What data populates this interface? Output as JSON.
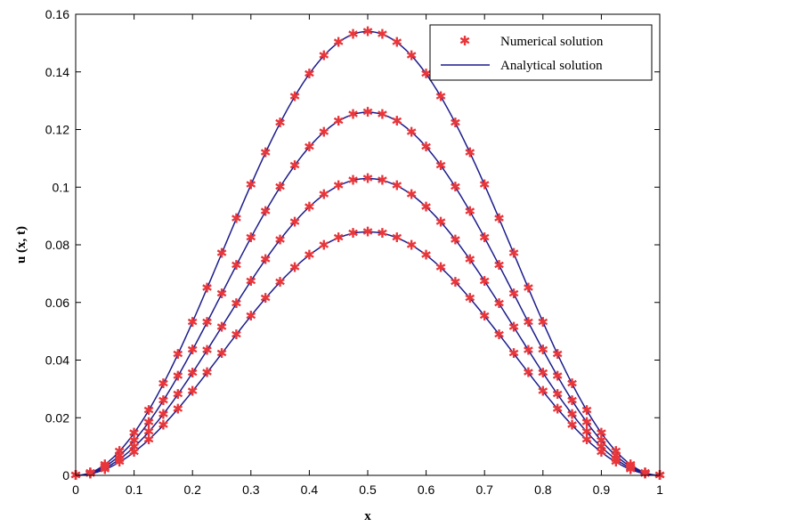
{
  "chart_data": {
    "type": "line",
    "title": "",
    "xlabel": "x",
    "ylabel": "u (x, t)",
    "xlim": [
      0,
      1
    ],
    "ylim": [
      0,
      0.16
    ],
    "x_ticks": [
      "0",
      "0.1",
      "0.2",
      "0.3",
      "0.4",
      "0.5",
      "0.6",
      "0.7",
      "0.8",
      "0.9",
      "1"
    ],
    "y_ticks": [
      "0",
      "0.02",
      "0.04",
      "0.06",
      "0.08",
      "0.1",
      "0.12",
      "0.14",
      "0.16"
    ],
    "x_tick_values": [
      0,
      0.1,
      0.2,
      0.3,
      0.4,
      0.5,
      0.6,
      0.7,
      0.8,
      0.9,
      1
    ],
    "y_tick_values": [
      0,
      0.02,
      0.04,
      0.06,
      0.08,
      0.1,
      0.12,
      0.14,
      0.16
    ],
    "grid": false,
    "legend_position": "top-right",
    "legend": [
      {
        "label": "Numerical solution",
        "style": "marker",
        "symbol": "*"
      },
      {
        "label": "Analytical solution",
        "style": "line"
      }
    ],
    "colors": {
      "numerical": "#e8363a",
      "analytical": "#1c1c8c",
      "axis": "#000000"
    },
    "curve_shape": "peak * sin(pi*x)^2",
    "sample_spacing": 0.025,
    "series": [
      {
        "name": "Analytical solution",
        "peak": 0.154
      },
      {
        "name": "Analytical solution",
        "peak": 0.126
      },
      {
        "name": "Analytical solution",
        "peak": 0.103
      },
      {
        "name": "Analytical solution",
        "peak": 0.0845
      }
    ]
  }
}
